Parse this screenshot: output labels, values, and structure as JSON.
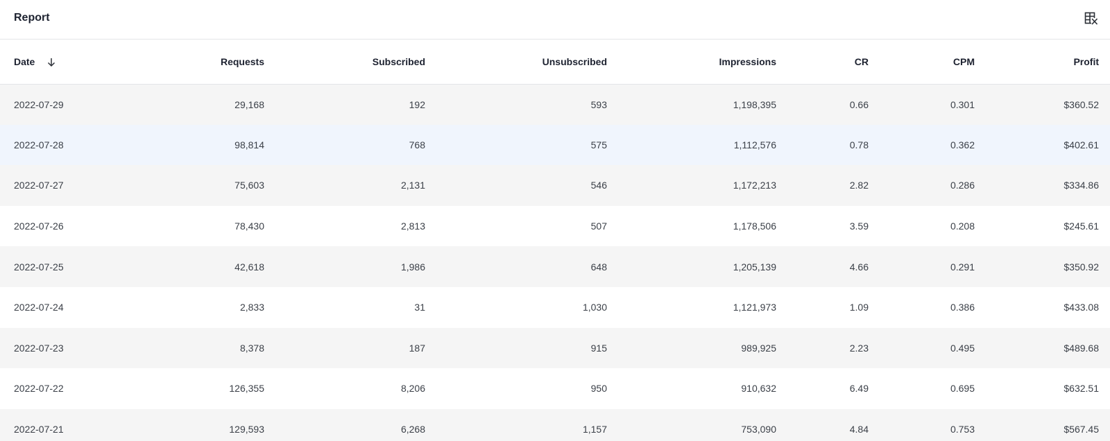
{
  "header": {
    "title": "Report",
    "settings_icon": "table-columns-settings-icon"
  },
  "table": {
    "columns": [
      {
        "key": "date",
        "label": "Date",
        "sorted": "desc"
      },
      {
        "key": "requests",
        "label": "Requests"
      },
      {
        "key": "subscribed",
        "label": "Subscribed"
      },
      {
        "key": "unsubscribed",
        "label": "Unsubscribed"
      },
      {
        "key": "impressions",
        "label": "Impressions"
      },
      {
        "key": "cr",
        "label": "CR"
      },
      {
        "key": "cpm",
        "label": "CPM"
      },
      {
        "key": "profit",
        "label": "Profit"
      }
    ],
    "sort_icon": "arrow-down-icon",
    "rows": [
      [
        "2022-07-29",
        "29,168",
        "192",
        "593",
        "1,198,395",
        "0.66",
        "0.301",
        "$360.52"
      ],
      [
        "2022-07-28",
        "98,814",
        "768",
        "575",
        "1,112,576",
        "0.78",
        "0.362",
        "$402.61"
      ],
      [
        "2022-07-27",
        "75,603",
        "2,131",
        "546",
        "1,172,213",
        "2.82",
        "0.286",
        "$334.86"
      ],
      [
        "2022-07-26",
        "78,430",
        "2,813",
        "507",
        "1,178,506",
        "3.59",
        "0.208",
        "$245.61"
      ],
      [
        "2022-07-25",
        "42,618",
        "1,986",
        "648",
        "1,205,139",
        "4.66",
        "0.291",
        "$350.92"
      ],
      [
        "2022-07-24",
        "2,833",
        "31",
        "1,030",
        "1,121,973",
        "1.09",
        "0.386",
        "$433.08"
      ],
      [
        "2022-07-23",
        "8,378",
        "187",
        "915",
        "989,925",
        "2.23",
        "0.495",
        "$489.68"
      ],
      [
        "2022-07-22",
        "126,355",
        "8,206",
        "950",
        "910,632",
        "6.49",
        "0.695",
        "$632.51"
      ],
      [
        "2022-07-21",
        "129,593",
        "6,268",
        "1,157",
        "753,090",
        "4.84",
        "0.753",
        "$567.45"
      ]
    ],
    "hovered_row": 1,
    "colors": {
      "stripe": "#f5f5f5",
      "hover": "#f0f5fd",
      "border": "#e3e5e8"
    }
  }
}
